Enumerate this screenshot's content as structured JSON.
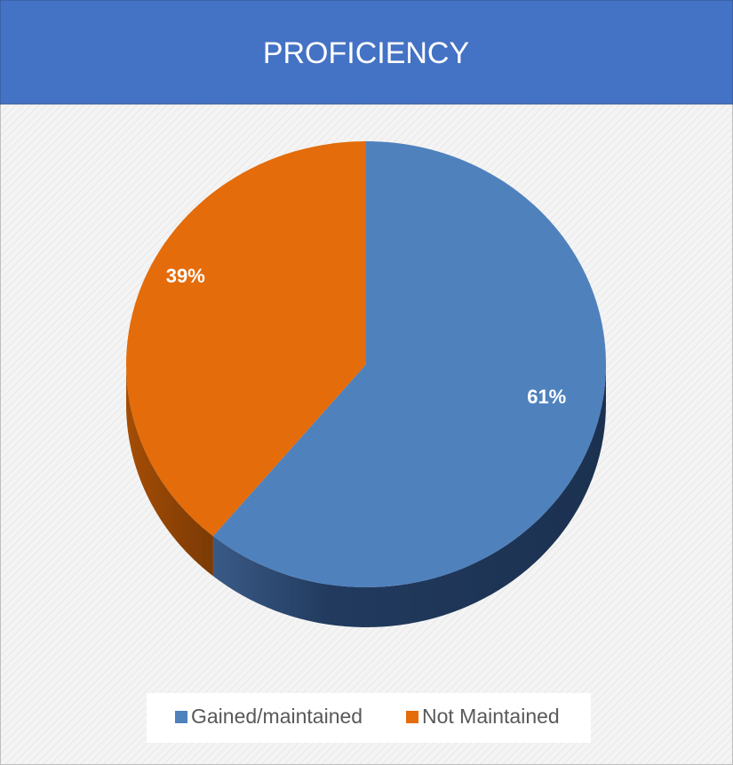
{
  "chart_data": {
    "type": "pie",
    "title": "PROFICIENCY",
    "categories": [
      "Gained/maintained",
      "Not Maintained"
    ],
    "values": [
      61,
      39
    ],
    "value_labels": [
      "61%",
      "39%"
    ],
    "colors": [
      "#4f81bd",
      "#e46c0a"
    ],
    "legend": "bottom"
  }
}
